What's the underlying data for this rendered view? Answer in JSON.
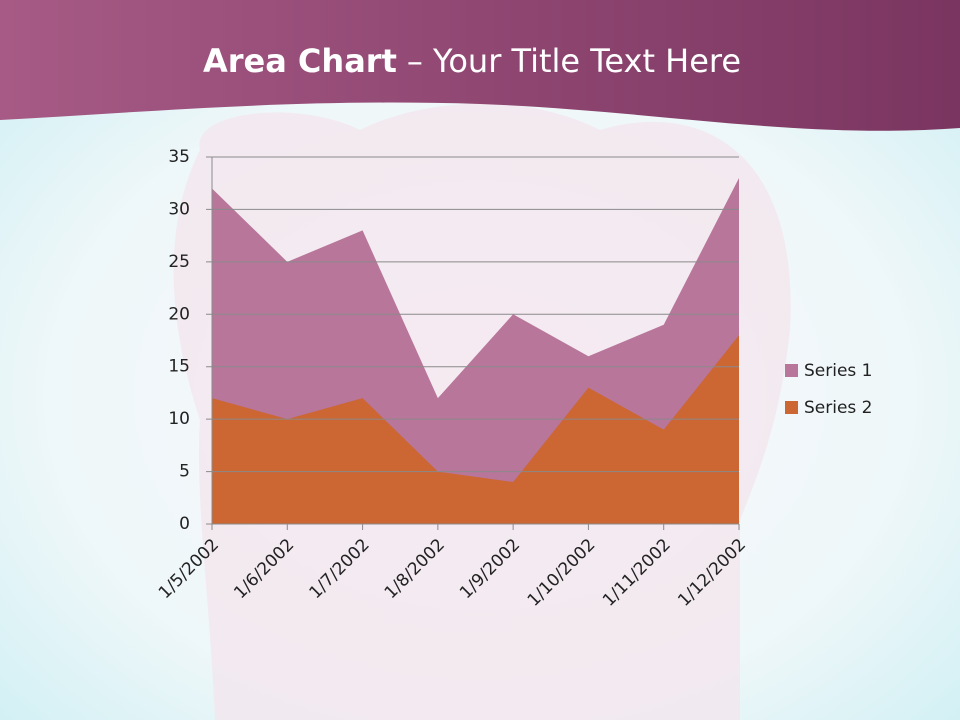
{
  "chart_data": {
    "type": "area",
    "title": {
      "bold": "Area Chart",
      "text": "– Your Title Text Here"
    },
    "categories": [
      "1/5/2002",
      "1/6/2002",
      "1/7/2002",
      "1/8/2002",
      "1/9/2002",
      "1/10/2002",
      "1/11/2002",
      "1/12/2002"
    ],
    "series": [
      {
        "name": "Series 1",
        "color": "#b8769a",
        "values": [
          32,
          25,
          28,
          12,
          20,
          16,
          19,
          33
        ]
      },
      {
        "name": "Series 2",
        "color": "#cc6633",
        "values": [
          12,
          10,
          12,
          5,
          4,
          13,
          9,
          18
        ]
      }
    ],
    "ylim": [
      0,
      35
    ],
    "yticks": [
      0,
      5,
      10,
      15,
      20,
      25,
      30,
      35
    ],
    "grid": true,
    "legend": "right"
  }
}
